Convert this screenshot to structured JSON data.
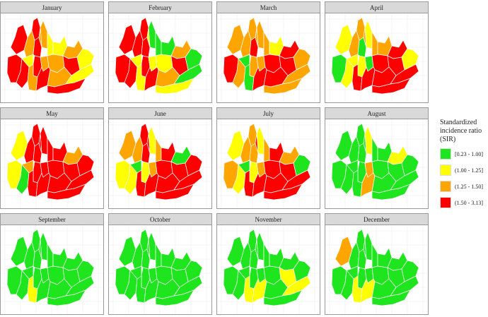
{
  "panels": [
    {
      "month": "January",
      "regions": [
        3,
        3,
        2,
        3,
        1,
        3,
        3,
        2,
        2,
        1,
        3,
        2,
        1,
        2,
        2,
        3,
        1,
        2,
        3,
        2,
        1,
        3
      ]
    },
    {
      "month": "February",
      "regions": [
        3,
        3,
        3,
        3,
        1,
        3,
        3,
        0,
        1,
        0,
        3,
        1,
        0,
        2,
        1,
        3,
        0,
        1,
        3,
        2,
        0,
        1
      ]
    },
    {
      "month": "March",
      "regions": [
        2,
        3,
        2,
        2,
        0,
        2,
        3,
        2,
        2,
        2,
        2,
        2,
        1,
        3,
        3,
        3,
        2,
        0,
        3,
        3,
        2,
        2
      ]
    },
    {
      "month": "April",
      "regions": [
        1,
        0,
        2,
        1,
        1,
        2,
        0,
        1,
        2,
        2,
        1,
        0,
        2,
        3,
        3,
        3,
        1,
        3,
        3,
        3,
        3,
        3
      ]
    },
    {
      "month": "May",
      "regions": [
        1,
        1,
        3,
        0,
        2,
        3,
        3,
        3,
        3,
        3,
        3,
        3,
        3,
        2,
        3,
        3,
        3,
        3,
        3,
        3,
        3,
        3
      ]
    },
    {
      "month": "June",
      "regions": [
        2,
        1,
        2,
        1,
        0,
        3,
        3,
        1,
        3,
        2,
        1,
        2,
        3,
        0,
        3,
        3,
        3,
        3,
        3,
        3,
        3,
        3
      ]
    },
    {
      "month": "July",
      "regions": [
        1,
        2,
        2,
        1,
        0,
        2,
        2,
        1,
        3,
        2,
        1,
        2,
        3,
        2,
        3,
        3,
        0,
        3,
        3,
        3,
        3,
        3
      ]
    },
    {
      "month": "August",
      "regions": [
        0,
        0,
        0,
        0,
        0,
        0,
        0,
        1,
        0,
        0,
        0,
        2,
        0,
        1,
        0,
        0,
        0,
        0,
        2,
        0,
        0,
        0
      ]
    },
    {
      "month": "September",
      "regions": [
        0,
        0,
        0,
        0,
        0,
        0,
        0,
        0,
        0,
        0,
        0,
        0,
        0,
        0,
        0,
        0,
        0,
        1,
        0,
        0,
        0,
        0
      ]
    },
    {
      "month": "October",
      "regions": [
        0,
        0,
        0,
        0,
        0,
        0,
        0,
        0,
        0,
        0,
        0,
        0,
        0,
        0,
        0,
        0,
        0,
        0,
        0,
        0,
        0,
        0
      ]
    },
    {
      "month": "November",
      "regions": [
        0,
        0,
        0,
        0,
        0,
        0,
        0,
        0,
        0,
        0,
        0,
        0,
        0,
        0,
        0,
        1,
        0,
        1,
        1,
        0,
        1,
        0
      ]
    },
    {
      "month": "December",
      "regions": [
        2,
        0,
        0,
        0,
        0,
        0,
        0,
        0,
        0,
        0,
        0,
        0,
        0,
        0,
        0,
        0,
        0,
        1,
        1,
        0,
        0,
        0
      ]
    }
  ],
  "legend": {
    "title": "Standardized incidence ratio (SIR)",
    "items": [
      {
        "label": "[0.23 - 1.00]",
        "color": "#1ee51e"
      },
      {
        "label": "(1.00 - 1.25]",
        "color": "#ffff00"
      },
      {
        "label": "(1.25 - 1.50]",
        "color": "#ffa500"
      },
      {
        "label": "(1.50 - 3.13]",
        "color": "#ff0000"
      }
    ]
  }
}
